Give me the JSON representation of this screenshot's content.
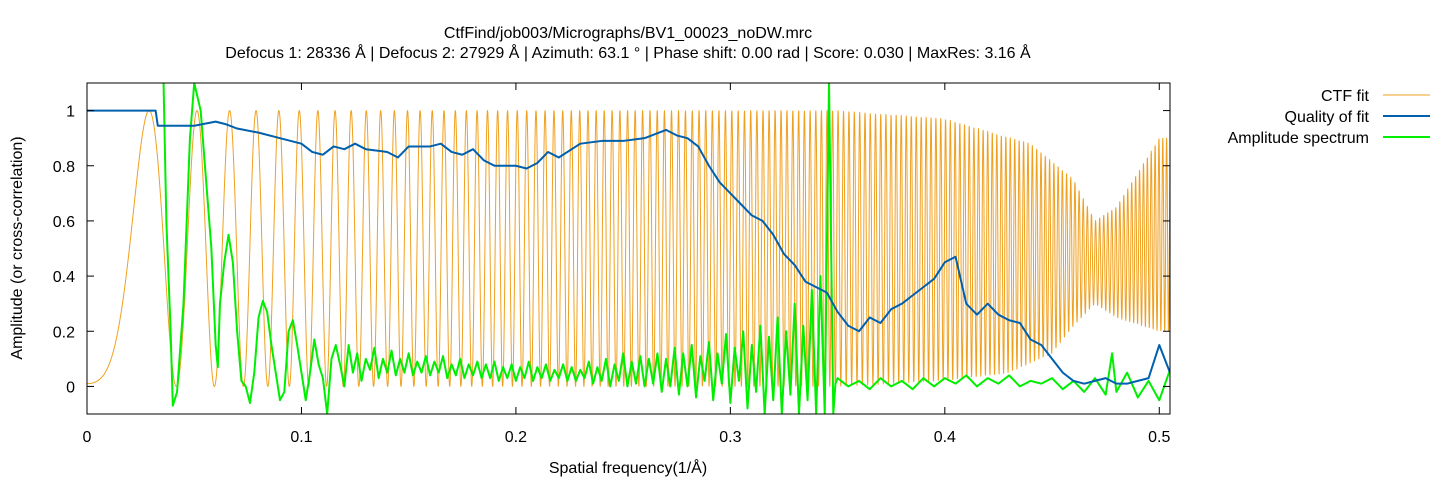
{
  "chart_data": {
    "type": "line",
    "title": "CtfFind/job003/Micrographs/BV1_00023_noDW.mrc",
    "subtitle": "Defocus 1: 28336 Å | Defocus 2: 27929 Å | Azimuth: 63.1 ° | Phase shift: 0.00 rad | Score: 0.030 | MaxRes: 3.16 Å",
    "xlabel": "Spatial frequency(1/Å)",
    "ylabel": "Amplitude (or cross-correlation)",
    "xlim": [
      0,
      0.505
    ],
    "ylim": [
      -0.1,
      1.1
    ],
    "xticks": [
      {
        "value": 0,
        "label": "0"
      },
      {
        "value": 0.1,
        "label": "0.1"
      },
      {
        "value": 0.2,
        "label": "0.2"
      },
      {
        "value": 0.3,
        "label": "0.3"
      },
      {
        "value": 0.4,
        "label": "0.4"
      },
      {
        "value": 0.5,
        "label": "0.5"
      }
    ],
    "yticks": [
      {
        "value": 0,
        "label": "0"
      },
      {
        "value": 0.2,
        "label": "0.2"
      },
      {
        "value": 0.4,
        "label": "0.4"
      },
      {
        "value": 0.6,
        "label": "0.6"
      },
      {
        "value": 0.8,
        "label": "0.8"
      },
      {
        "value": 1,
        "label": "1"
      }
    ],
    "grid": false,
    "legend_position": "outside-top-right",
    "series": [
      {
        "name": "CTF fit",
        "color": "#f0a020",
        "oscillation": {
          "defocus_A": 28336,
          "wavelength_A": 0.0197,
          "amplitude_contrast": 0.1,
          "x_start": 0.0
        },
        "envelope": [
          [
            0.0,
            1.0
          ],
          [
            0.35,
            1.0
          ],
          [
            0.4,
            0.97
          ],
          [
            0.44,
            0.88
          ],
          [
            0.46,
            0.75
          ],
          [
            0.47,
            0.6
          ],
          [
            0.48,
            0.65
          ],
          [
            0.5,
            0.9
          ]
        ],
        "floor": [
          [
            0.0,
            0.0
          ],
          [
            0.35,
            0.0
          ],
          [
            0.4,
            0.02
          ],
          [
            0.43,
            0.05
          ],
          [
            0.45,
            0.12
          ],
          [
            0.46,
            0.22
          ],
          [
            0.47,
            0.3
          ],
          [
            0.48,
            0.25
          ],
          [
            0.5,
            0.2
          ]
        ]
      },
      {
        "name": "Quality of fit",
        "color": "#0060ad",
        "points": [
          [
            0.0,
            1.0
          ],
          [
            0.032,
            1.0
          ],
          [
            0.033,
            0.945
          ],
          [
            0.05,
            0.945
          ],
          [
            0.06,
            0.96
          ],
          [
            0.065,
            0.95
          ],
          [
            0.07,
            0.935
          ],
          [
            0.08,
            0.92
          ],
          [
            0.09,
            0.9
          ],
          [
            0.1,
            0.88
          ],
          [
            0.105,
            0.85
          ],
          [
            0.11,
            0.84
          ],
          [
            0.115,
            0.87
          ],
          [
            0.12,
            0.86
          ],
          [
            0.125,
            0.88
          ],
          [
            0.13,
            0.86
          ],
          [
            0.14,
            0.85
          ],
          [
            0.145,
            0.83
          ],
          [
            0.15,
            0.87
          ],
          [
            0.16,
            0.87
          ],
          [
            0.165,
            0.88
          ],
          [
            0.17,
            0.85
          ],
          [
            0.175,
            0.84
          ],
          [
            0.18,
            0.86
          ],
          [
            0.185,
            0.82
          ],
          [
            0.19,
            0.8
          ],
          [
            0.2,
            0.8
          ],
          [
            0.205,
            0.79
          ],
          [
            0.21,
            0.81
          ],
          [
            0.215,
            0.85
          ],
          [
            0.22,
            0.83
          ],
          [
            0.23,
            0.88
          ],
          [
            0.24,
            0.89
          ],
          [
            0.25,
            0.89
          ],
          [
            0.26,
            0.9
          ],
          [
            0.27,
            0.93
          ],
          [
            0.275,
            0.91
          ],
          [
            0.28,
            0.9
          ],
          [
            0.285,
            0.87
          ],
          [
            0.29,
            0.8
          ],
          [
            0.295,
            0.74
          ],
          [
            0.3,
            0.7
          ],
          [
            0.305,
            0.66
          ],
          [
            0.31,
            0.62
          ],
          [
            0.315,
            0.6
          ],
          [
            0.32,
            0.55
          ],
          [
            0.325,
            0.48
          ],
          [
            0.33,
            0.44
          ],
          [
            0.335,
            0.38
          ],
          [
            0.34,
            0.36
          ],
          [
            0.345,
            0.34
          ],
          [
            0.35,
            0.27
          ],
          [
            0.355,
            0.22
          ],
          [
            0.36,
            0.2
          ],
          [
            0.365,
            0.25
          ],
          [
            0.37,
            0.23
          ],
          [
            0.375,
            0.28
          ],
          [
            0.38,
            0.3
          ],
          [
            0.385,
            0.33
          ],
          [
            0.39,
            0.36
          ],
          [
            0.395,
            0.39
          ],
          [
            0.4,
            0.45
          ],
          [
            0.405,
            0.47
          ],
          [
            0.41,
            0.3
          ],
          [
            0.415,
            0.26
          ],
          [
            0.42,
            0.3
          ],
          [
            0.425,
            0.26
          ],
          [
            0.43,
            0.24
          ],
          [
            0.435,
            0.23
          ],
          [
            0.44,
            0.17
          ],
          [
            0.445,
            0.15
          ],
          [
            0.45,
            0.1
          ],
          [
            0.455,
            0.05
          ],
          [
            0.46,
            0.02
          ],
          [
            0.465,
            0.01
          ],
          [
            0.47,
            0.02
          ],
          [
            0.475,
            0.03
          ],
          [
            0.48,
            0.01
          ],
          [
            0.485,
            0.01
          ],
          [
            0.49,
            0.02
          ],
          [
            0.495,
            0.03
          ],
          [
            0.5,
            0.15
          ],
          [
            0.505,
            0.05
          ]
        ]
      },
      {
        "name": "Amplitude spectrum",
        "color": "#00ee00",
        "points": [
          [
            0.0357,
            1.1
          ],
          [
            0.037,
            0.6
          ],
          [
            0.039,
            0.2
          ],
          [
            0.04,
            -0.07
          ],
          [
            0.042,
            -0.02
          ],
          [
            0.045,
            0.3
          ],
          [
            0.048,
            0.9
          ],
          [
            0.05,
            1.1
          ],
          [
            0.053,
            1.0
          ],
          [
            0.055,
            0.8
          ],
          [
            0.058,
            0.5
          ],
          [
            0.06,
            0.15
          ],
          [
            0.061,
            0.07
          ],
          [
            0.062,
            0.3
          ],
          [
            0.064,
            0.45
          ],
          [
            0.066,
            0.55
          ],
          [
            0.068,
            0.45
          ],
          [
            0.07,
            0.2
          ],
          [
            0.072,
            0.02
          ],
          [
            0.074,
            0.0
          ],
          [
            0.076,
            -0.06
          ],
          [
            0.078,
            0.05
          ],
          [
            0.08,
            0.25
          ],
          [
            0.082,
            0.31
          ],
          [
            0.084,
            0.27
          ],
          [
            0.086,
            0.15
          ],
          [
            0.088,
            0.05
          ],
          [
            0.09,
            -0.05
          ],
          [
            0.092,
            -0.02
          ],
          [
            0.094,
            0.2
          ],
          [
            0.096,
            0.24
          ],
          [
            0.098,
            0.15
          ],
          [
            0.1,
            0.05
          ],
          [
            0.102,
            -0.05
          ],
          [
            0.104,
            0.05
          ],
          [
            0.106,
            0.17
          ],
          [
            0.108,
            0.08
          ],
          [
            0.11,
            0.03
          ],
          [
            0.112,
            -0.1
          ],
          [
            0.114,
            0.1
          ],
          [
            0.116,
            0.15
          ],
          [
            0.118,
            0.08
          ],
          [
            0.12,
            0.0
          ],
          [
            0.122,
            0.15
          ],
          [
            0.124,
            0.05
          ],
          [
            0.126,
            0.12
          ],
          [
            0.128,
            0.02
          ],
          [
            0.13,
            0.1
          ],
          [
            0.132,
            0.06
          ],
          [
            0.134,
            0.14
          ],
          [
            0.136,
            0.03
          ],
          [
            0.138,
            0.1
          ],
          [
            0.14,
            0.05
          ],
          [
            0.142,
            0.13
          ],
          [
            0.144,
            0.04
          ],
          [
            0.146,
            0.1
          ],
          [
            0.148,
            0.05
          ],
          [
            0.15,
            0.12
          ],
          [
            0.152,
            0.04
          ],
          [
            0.154,
            0.09
          ],
          [
            0.156,
            0.05
          ],
          [
            0.158,
            0.11
          ],
          [
            0.16,
            0.04
          ],
          [
            0.162,
            0.09
          ],
          [
            0.164,
            0.05
          ],
          [
            0.166,
            0.11
          ],
          [
            0.168,
            0.03
          ],
          [
            0.17,
            0.08
          ],
          [
            0.172,
            0.04
          ],
          [
            0.174,
            0.1
          ],
          [
            0.176,
            0.03
          ],
          [
            0.178,
            0.08
          ],
          [
            0.18,
            0.04
          ],
          [
            0.182,
            0.09
          ],
          [
            0.184,
            0.03
          ],
          [
            0.186,
            0.08
          ],
          [
            0.188,
            0.03
          ],
          [
            0.19,
            0.09
          ],
          [
            0.192,
            0.02
          ],
          [
            0.194,
            0.07
          ],
          [
            0.196,
            0.03
          ],
          [
            0.198,
            0.08
          ],
          [
            0.2,
            0.02
          ],
          [
            0.202,
            0.07
          ],
          [
            0.204,
            0.03
          ],
          [
            0.206,
            0.09
          ],
          [
            0.208,
            0.02
          ],
          [
            0.21,
            0.07
          ],
          [
            0.212,
            0.03
          ],
          [
            0.214,
            0.08
          ],
          [
            0.216,
            0.02
          ],
          [
            0.218,
            0.06
          ],
          [
            0.22,
            0.03
          ],
          [
            0.222,
            0.08
          ],
          [
            0.224,
            0.02
          ],
          [
            0.226,
            0.07
          ],
          [
            0.228,
            0.02
          ],
          [
            0.23,
            0.06
          ],
          [
            0.232,
            0.03
          ],
          [
            0.234,
            0.09
          ],
          [
            0.236,
            0.01
          ],
          [
            0.238,
            0.07
          ],
          [
            0.24,
            0.02
          ],
          [
            0.242,
            0.1
          ],
          [
            0.244,
            0.0
          ],
          [
            0.246,
            0.08
          ],
          [
            0.248,
            0.02
          ],
          [
            0.25,
            0.12
          ],
          [
            0.252,
            0.0
          ],
          [
            0.254,
            0.09
          ],
          [
            0.256,
            0.01
          ],
          [
            0.258,
            0.11
          ],
          [
            0.26,
            0.0
          ],
          [
            0.262,
            0.1
          ],
          [
            0.264,
            0.01
          ],
          [
            0.266,
            0.12
          ],
          [
            0.268,
            -0.02
          ],
          [
            0.27,
            0.1
          ],
          [
            0.272,
            0.0
          ],
          [
            0.274,
            0.14
          ],
          [
            0.276,
            -0.03
          ],
          [
            0.278,
            0.12
          ],
          [
            0.28,
            0.0
          ],
          [
            0.282,
            0.15
          ],
          [
            0.284,
            -0.04
          ],
          [
            0.286,
            0.11
          ],
          [
            0.288,
            0.02
          ],
          [
            0.29,
            0.16
          ],
          [
            0.292,
            -0.05
          ],
          [
            0.294,
            0.12
          ],
          [
            0.296,
            0.01
          ],
          [
            0.298,
            0.19
          ],
          [
            0.3,
            -0.06
          ],
          [
            0.302,
            0.14
          ],
          [
            0.304,
            0.02
          ],
          [
            0.306,
            0.2
          ],
          [
            0.308,
            -0.08
          ],
          [
            0.31,
            0.15
          ],
          [
            0.312,
            -0.02
          ],
          [
            0.314,
            0.22
          ],
          [
            0.316,
            -0.1
          ],
          [
            0.318,
            0.18
          ],
          [
            0.32,
            -0.05
          ],
          [
            0.322,
            0.25
          ],
          [
            0.324,
            -0.1
          ],
          [
            0.326,
            0.2
          ],
          [
            0.328,
            -0.03
          ],
          [
            0.33,
            0.3
          ],
          [
            0.332,
            -0.1
          ],
          [
            0.334,
            0.22
          ],
          [
            0.336,
            -0.05
          ],
          [
            0.338,
            0.35
          ],
          [
            0.34,
            -0.1
          ],
          [
            0.342,
            0.4
          ],
          [
            0.344,
            -0.1
          ],
          [
            0.346,
            1.1
          ],
          [
            0.348,
            -0.1
          ],
          [
            0.349,
            0.01
          ],
          [
            0.35,
            0.03
          ],
          [
            0.355,
            0.0
          ],
          [
            0.36,
            0.02
          ],
          [
            0.365,
            -0.01
          ],
          [
            0.37,
            0.03
          ],
          [
            0.375,
            0.0
          ],
          [
            0.38,
            0.02
          ],
          [
            0.385,
            -0.01
          ],
          [
            0.39,
            0.03
          ],
          [
            0.395,
            0.0
          ],
          [
            0.4,
            0.03
          ],
          [
            0.405,
            0.01
          ],
          [
            0.41,
            0.04
          ],
          [
            0.415,
            0.0
          ],
          [
            0.42,
            0.03
          ],
          [
            0.425,
            0.01
          ],
          [
            0.43,
            0.04
          ],
          [
            0.435,
            0.0
          ],
          [
            0.44,
            0.02
          ],
          [
            0.445,
            0.01
          ],
          [
            0.45,
            0.03
          ],
          [
            0.455,
            -0.01
          ],
          [
            0.46,
            0.02
          ],
          [
            0.465,
            -0.02
          ],
          [
            0.47,
            0.03
          ],
          [
            0.475,
            -0.03
          ],
          [
            0.478,
            0.12
          ],
          [
            0.48,
            -0.02
          ],
          [
            0.485,
            0.05
          ],
          [
            0.49,
            -0.04
          ],
          [
            0.495,
            0.02
          ],
          [
            0.5,
            -0.05
          ],
          [
            0.505,
            0.06
          ]
        ]
      }
    ]
  }
}
